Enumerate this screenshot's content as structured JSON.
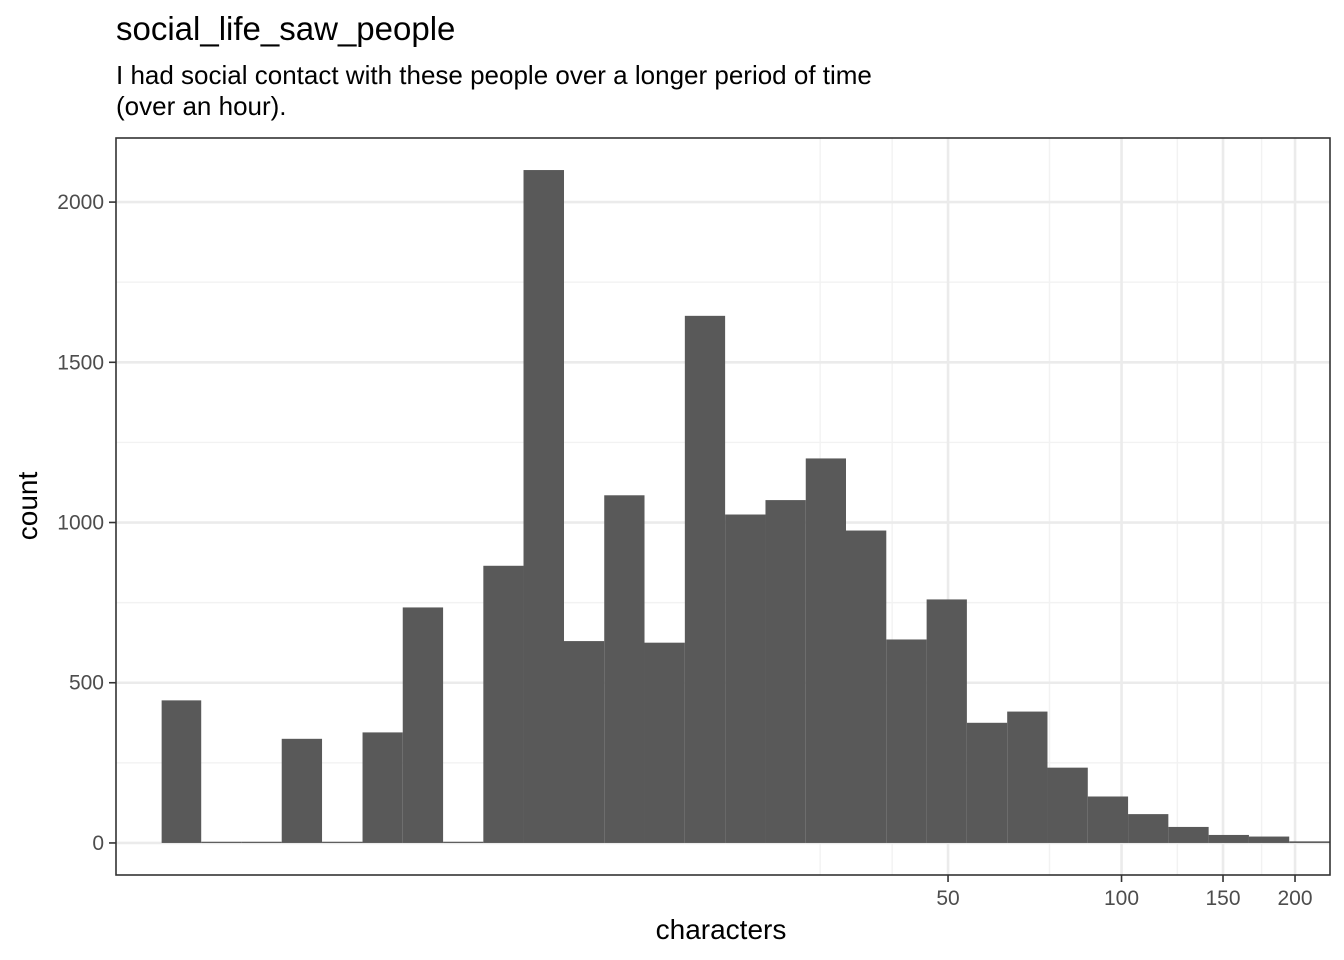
{
  "chart_data": {
    "type": "bar",
    "title": "social_life_saw_people",
    "subtitle_lines": [
      "I had social contact with these people over a longer period of time",
      "(over an hour)."
    ],
    "xlabel": "characters",
    "ylabel": "count",
    "x_scale": "log10",
    "x_ticks": [
      50,
      100,
      150,
      200
    ],
    "x_tick_labels": [
      "50",
      "100",
      "150",
      "200"
    ],
    "x_minor_gridlines": [
      30,
      40,
      75,
      125,
      175
    ],
    "y_ticks": [
      0,
      500,
      1000,
      1500,
      2000
    ],
    "y_tick_labels": [
      "0",
      "500",
      "1000",
      "1500",
      "2000"
    ],
    "ylim": [
      -100,
      2200
    ],
    "xlim": [
      1.8,
      230
    ],
    "grid": true,
    "bars": [
      {
        "x0": 2.16,
        "x1": 2.53,
        "count": 445
      },
      {
        "x0": 2.53,
        "x1": 2.97,
        "count": 0
      },
      {
        "x0": 2.97,
        "x1": 3.49,
        "count": 0
      },
      {
        "x0": 3.49,
        "x1": 4.1,
        "count": 325
      },
      {
        "x0": 4.1,
        "x1": 4.82,
        "count": 0
      },
      {
        "x0": 4.82,
        "x1": 5.66,
        "count": 345
      },
      {
        "x0": 5.66,
        "x1": 6.65,
        "count": 735
      },
      {
        "x0": 6.65,
        "x1": 7.81,
        "count": 0
      },
      {
        "x0": 7.81,
        "x1": 9.17,
        "count": 865
      },
      {
        "x0": 9.17,
        "x1": 10.78,
        "count": 2100
      },
      {
        "x0": 10.78,
        "x1": 12.66,
        "count": 630
      },
      {
        "x0": 12.66,
        "x1": 14.87,
        "count": 1085
      },
      {
        "x0": 14.87,
        "x1": 17.47,
        "count": 625
      },
      {
        "x0": 17.47,
        "x1": 20.52,
        "count": 1645
      },
      {
        "x0": 20.52,
        "x1": 24.11,
        "count": 1025
      },
      {
        "x0": 24.11,
        "x1": 28.32,
        "count": 1070
      },
      {
        "x0": 28.32,
        "x1": 33.26,
        "count": 1200
      },
      {
        "x0": 33.26,
        "x1": 39.07,
        "count": 975
      },
      {
        "x0": 39.07,
        "x1": 45.9,
        "count": 635
      },
      {
        "x0": 45.9,
        "x1": 53.91,
        "count": 760
      },
      {
        "x0": 53.91,
        "x1": 63.33,
        "count": 375
      },
      {
        "x0": 63.33,
        "x1": 74.39,
        "count": 410
      },
      {
        "x0": 74.39,
        "x1": 87.39,
        "count": 235
      },
      {
        "x0": 87.39,
        "x1": 102.65,
        "count": 145
      },
      {
        "x0": 102.65,
        "x1": 120.57,
        "count": 90
      },
      {
        "x0": 120.57,
        "x1": 141.63,
        "count": 50
      },
      {
        "x0": 141.63,
        "x1": 166.37,
        "count": 25
      },
      {
        "x0": 166.37,
        "x1": 195.42,
        "count": 20
      },
      {
        "x0": 195.42,
        "x1": 229.55,
        "count": 5
      },
      {
        "x0": 229.55,
        "x1": 269.64,
        "count": 3
      }
    ],
    "colors": {
      "bar_fill": "#595959",
      "panel_border": "#333333",
      "grid_major": "#ebebeb",
      "grid_minor": "#f2f2f2",
      "tick_text": "#4d4d4d",
      "title_text": "#000000"
    }
  }
}
